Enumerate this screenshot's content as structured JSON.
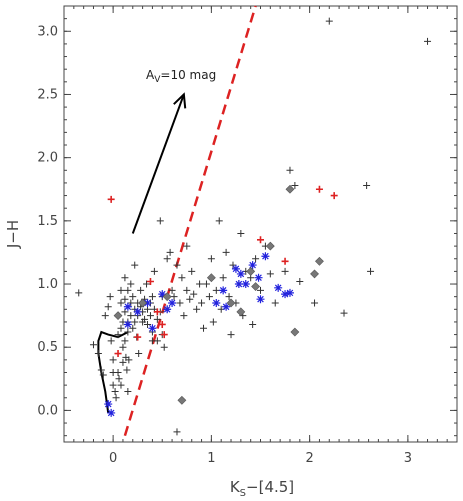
{
  "chart_data": {
    "type": "scatter",
    "title": "",
    "xlabel_main": "K",
    "xlabel_sub": "S",
    "xlabel_rest": "−[4.5]",
    "ylabel": "J−H",
    "xlim": [
      -0.5,
      3.5
    ],
    "ylim": [
      -0.25,
      3.2
    ],
    "x_ticks": [
      0,
      1,
      2,
      3
    ],
    "x_tick_labels": [
      "0",
      "1",
      "2",
      "3"
    ],
    "y_ticks": [
      0.0,
      0.5,
      1.0,
      1.5,
      2.0,
      2.5,
      3.0
    ],
    "y_tick_labels": [
      "0.0",
      "0.5",
      "1.0",
      "1.5",
      "2.0",
      "2.5",
      "3.0"
    ],
    "grid": false,
    "annotation": {
      "prefix": "A",
      "sub": "V",
      "rest": "=10 mag"
    },
    "colors": {
      "black_cross": "#333333",
      "red_cross": "#dd2222",
      "blue_star": "#2222dd",
      "gray_diamond": "#777777",
      "reddening_line": "#dd2222",
      "arrow": "#000000",
      "locus": "#000000"
    },
    "reddening_vector": {
      "from": [
        0.2,
        1.4
      ],
      "to": [
        0.72,
        2.5
      ]
    },
    "reddening_line": {
      "from": [
        0.12,
        -0.2
      ],
      "to": [
        1.45,
        3.2
      ]
    },
    "intrinsic_locus": [
      [
        -0.05,
        -0.02
      ],
      [
        -0.08,
        0.15
      ],
      [
        -0.12,
        0.3
      ],
      [
        -0.15,
        0.45
      ],
      [
        -0.15,
        0.55
      ],
      [
        -0.12,
        0.62
      ],
      [
        -0.05,
        0.6
      ],
      [
        0.05,
        0.58
      ],
      [
        0.1,
        0.6
      ],
      [
        0.15,
        0.62
      ]
    ],
    "series": [
      {
        "marker": "black-cross",
        "points": [
          [
            -0.35,
            0.93
          ],
          [
            -0.2,
            0.52
          ],
          [
            -0.15,
            0.45
          ],
          [
            -0.12,
            0.32
          ],
          [
            -0.1,
            0.28
          ],
          [
            -0.08,
            0.75
          ],
          [
            -0.05,
            0.82
          ],
          [
            -0.03,
            0.9
          ],
          [
            -0.02,
            0.55
          ],
          [
            0.0,
            0.4
          ],
          [
            0.0,
            0.3
          ],
          [
            0.0,
            0.2
          ],
          [
            0.02,
            0.15
          ],
          [
            0.03,
            0.1
          ],
          [
            0.05,
            0.6
          ],
          [
            0.05,
            0.45
          ],
          [
            0.05,
            0.3
          ],
          [
            0.06,
            0.25
          ],
          [
            0.08,
            0.95
          ],
          [
            0.08,
            0.85
          ],
          [
            0.08,
            0.65
          ],
          [
            0.08,
            0.2
          ],
          [
            0.1,
            0.7
          ],
          [
            0.1,
            0.5
          ],
          [
            0.1,
            0.38
          ],
          [
            0.12,
            1.05
          ],
          [
            0.12,
            0.88
          ],
          [
            0.12,
            0.78
          ],
          [
            0.12,
            0.55
          ],
          [
            0.13,
            0.42
          ],
          [
            0.14,
            0.32
          ],
          [
            0.15,
            0.95
          ],
          [
            0.15,
            0.7
          ],
          [
            0.15,
            0.62
          ],
          [
            0.15,
            0.15
          ],
          [
            0.16,
            0.4
          ],
          [
            0.18,
            1.0
          ],
          [
            0.18,
            0.85
          ],
          [
            0.18,
            0.75
          ],
          [
            0.2,
            0.9
          ],
          [
            0.2,
            0.65
          ],
          [
            0.22,
            1.15
          ],
          [
            0.22,
            0.8
          ],
          [
            0.22,
            0.7
          ],
          [
            0.24,
            0.58
          ],
          [
            0.25,
            0.85
          ],
          [
            0.25,
            0.75
          ],
          [
            0.26,
            0.45
          ],
          [
            0.28,
            0.95
          ],
          [
            0.28,
            0.82
          ],
          [
            0.3,
            0.78
          ],
          [
            0.3,
            0.7
          ],
          [
            0.32,
            0.88
          ],
          [
            0.32,
            0.72
          ],
          [
            0.34,
            1.0
          ],
          [
            0.35,
            0.8
          ],
          [
            0.35,
            0.68
          ],
          [
            0.38,
            0.85
          ],
          [
            0.38,
            0.75
          ],
          [
            0.4,
            0.9
          ],
          [
            0.4,
            0.62
          ],
          [
            0.4,
            0.55
          ],
          [
            0.42,
            1.1
          ],
          [
            0.42,
            0.8
          ],
          [
            0.45,
            0.72
          ],
          [
            0.45,
            0.55
          ],
          [
            0.48,
            1.5
          ],
          [
            0.48,
            0.78
          ],
          [
            0.5,
            0.9
          ],
          [
            0.5,
            0.6
          ],
          [
            0.52,
            0.5
          ],
          [
            0.55,
            1.2
          ],
          [
            0.55,
            0.8
          ],
          [
            0.58,
            1.25
          ],
          [
            0.6,
            0.95
          ],
          [
            0.62,
            0.9
          ],
          [
            0.65,
            1.15
          ],
          [
            0.65,
            -0.17
          ],
          [
            0.68,
            0.85
          ],
          [
            0.7,
            1.05
          ],
          [
            0.72,
            0.75
          ],
          [
            0.75,
            1.3
          ],
          [
            0.75,
            0.95
          ],
          [
            0.78,
            0.88
          ],
          [
            0.8,
            1.1
          ],
          [
            0.82,
            0.92
          ],
          [
            0.85,
            0.8
          ],
          [
            0.88,
            1.0
          ],
          [
            0.9,
            0.85
          ],
          [
            0.92,
            0.65
          ],
          [
            0.95,
            1.0
          ],
          [
            0.98,
            0.9
          ],
          [
            1.0,
            1.2
          ],
          [
            1.02,
            0.7
          ],
          [
            1.05,
            0.95
          ],
          [
            1.08,
            1.5
          ],
          [
            1.1,
            0.8
          ],
          [
            1.12,
            1.05
          ],
          [
            1.15,
            1.25
          ],
          [
            1.18,
            0.9
          ],
          [
            1.2,
            0.6
          ],
          [
            1.22,
            1.15
          ],
          [
            1.25,
            0.85
          ],
          [
            1.28,
            1.0
          ],
          [
            1.3,
            1.4
          ],
          [
            1.32,
            0.75
          ],
          [
            1.35,
            1.1
          ],
          [
            1.4,
            1.05
          ],
          [
            1.42,
            0.68
          ],
          [
            1.45,
            1.2
          ],
          [
            1.5,
            0.95
          ],
          [
            1.55,
            1.3
          ],
          [
            1.6,
            1.08
          ],
          [
            1.65,
            0.85
          ],
          [
            1.75,
            1.1
          ],
          [
            1.8,
            1.9
          ],
          [
            1.85,
            1.78
          ],
          [
            1.9,
            1.02
          ],
          [
            2.05,
            0.85
          ],
          [
            2.2,
            3.08
          ],
          [
            2.35,
            0.77
          ],
          [
            2.58,
            1.78
          ],
          [
            2.62,
            1.1
          ],
          [
            3.2,
            2.92
          ]
        ]
      },
      {
        "marker": "red-cross",
        "points": [
          [
            -0.02,
            1.67
          ],
          [
            0.05,
            0.45
          ],
          [
            0.25,
            0.58
          ],
          [
            0.38,
            1.02
          ],
          [
            0.45,
            0.78
          ],
          [
            0.5,
            0.68
          ],
          [
            0.52,
            0.6
          ],
          [
            1.5,
            1.35
          ],
          [
            1.75,
            1.18
          ],
          [
            2.1,
            1.75
          ],
          [
            2.25,
            1.7
          ]
        ]
      },
      {
        "marker": "blue-star",
        "points": [
          [
            -0.05,
            0.05
          ],
          [
            -0.02,
            -0.02
          ],
          [
            0.15,
            0.68
          ],
          [
            0.15,
            0.82
          ],
          [
            0.25,
            0.78
          ],
          [
            0.35,
            0.85
          ],
          [
            0.4,
            0.65
          ],
          [
            0.5,
            0.92
          ],
          [
            0.55,
            0.8
          ],
          [
            0.6,
            0.85
          ],
          [
            1.05,
            0.85
          ],
          [
            1.12,
            0.95
          ],
          [
            1.15,
            0.82
          ],
          [
            1.25,
            1.12
          ],
          [
            1.28,
            1.0
          ],
          [
            1.3,
            1.08
          ],
          [
            1.35,
            1.0
          ],
          [
            1.42,
            1.15
          ],
          [
            1.48,
            1.05
          ],
          [
            1.5,
            0.88
          ],
          [
            1.55,
            1.22
          ],
          [
            1.68,
            0.97
          ],
          [
            1.75,
            0.92
          ],
          [
            1.8,
            0.93
          ]
        ]
      },
      {
        "marker": "gray-diamond",
        "points": [
          [
            0.05,
            0.75
          ],
          [
            0.3,
            0.85
          ],
          [
            0.55,
            0.9
          ],
          [
            0.7,
            0.08
          ],
          [
            1.2,
            0.85
          ],
          [
            1.3,
            0.78
          ],
          [
            1.45,
            0.98
          ],
          [
            1.6,
            1.3
          ],
          [
            1.8,
            1.75
          ],
          [
            1.85,
            0.62
          ],
          [
            2.05,
            1.08
          ],
          [
            2.1,
            1.18
          ],
          [
            1.4,
            1.1
          ],
          [
            1.0,
            1.05
          ]
        ]
      }
    ]
  }
}
